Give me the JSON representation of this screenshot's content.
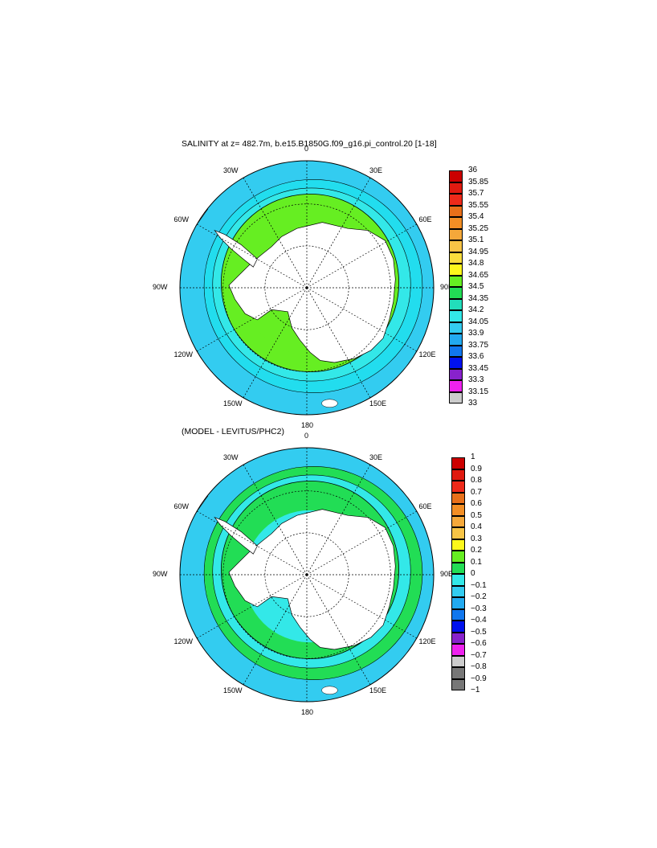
{
  "panels": [
    {
      "title": "SALINITY at z= 482.7m, b.e15.B1850G.f09_g16.pi_control.20 [1-18]",
      "longitudes": [
        "0",
        "30E",
        "60E",
        "90E",
        "120E",
        "150E",
        "180",
        "150W",
        "120W",
        "90W",
        "60W",
        "30W"
      ],
      "colorbar": {
        "labels": [
          "36",
          "35.85",
          "35.7",
          "35.55",
          "35.4",
          "35.25",
          "35.1",
          "34.95",
          "34.8",
          "34.65",
          "34.5",
          "34.35",
          "34.2",
          "34.05",
          "33.9",
          "33.75",
          "33.6",
          "33.45",
          "33.3",
          "33.15",
          "33"
        ],
        "colors": [
          "#cc0000",
          "#e01a10",
          "#ee2a1a",
          "#e8701a",
          "#f28e25",
          "#f5a83a",
          "#f7c446",
          "#f9dd3c",
          "#fdf71c",
          "#66ee22",
          "#22dd55",
          "#22ddbb",
          "#33e8e8",
          "#33ccf0",
          "#22aaf0",
          "#1177ee",
          "#0011ee",
          "#8822cc",
          "#ee22ee",
          "#cccccc",
          "#777777"
        ]
      },
      "map_colors": {
        "outer": "#33ccf0",
        "ring1": "#22ddee",
        "ring2": "#33e8e8",
        "main": "#66ee22",
        "inner": "#66ee22",
        "land": "#ffffff"
      }
    },
    {
      "title": "(MODEL - LEVITUS/PHC2)",
      "longitudes": [
        "0",
        "30E",
        "60E",
        "90E",
        "120E",
        "150E",
        "180",
        "150W",
        "120W",
        "90W",
        "60W",
        "30W"
      ],
      "colorbar": {
        "labels": [
          "1",
          "0.9",
          "0.8",
          "0.7",
          "0.6",
          "0.5",
          "0.4",
          "0.3",
          "0.2",
          "0.1",
          "0",
          "−0.1",
          "−0.2",
          "−0.3",
          "−0.4",
          "−0.5",
          "−0.6",
          "−0.7",
          "−0.8",
          "−0.9",
          "−1"
        ],
        "colors": [
          "#cc0000",
          "#e01a10",
          "#ee2a1a",
          "#e8701a",
          "#f28e25",
          "#f5a83a",
          "#f7c446",
          "#fdf71c",
          "#66ee22",
          "#22dd55",
          "#33e8e8",
          "#33ccf0",
          "#22aaf0",
          "#1177ee",
          "#0011ee",
          "#8822cc",
          "#ee22ee",
          "#cccccc",
          "#777777",
          "#777777"
        ]
      },
      "map_colors": {
        "outer": "#33ccf0",
        "ring1": "#22dd55",
        "ring2": "#33e8e8",
        "main": "#22dd55",
        "inner": "#33e8e8",
        "land": "#ffffff"
      }
    }
  ]
}
